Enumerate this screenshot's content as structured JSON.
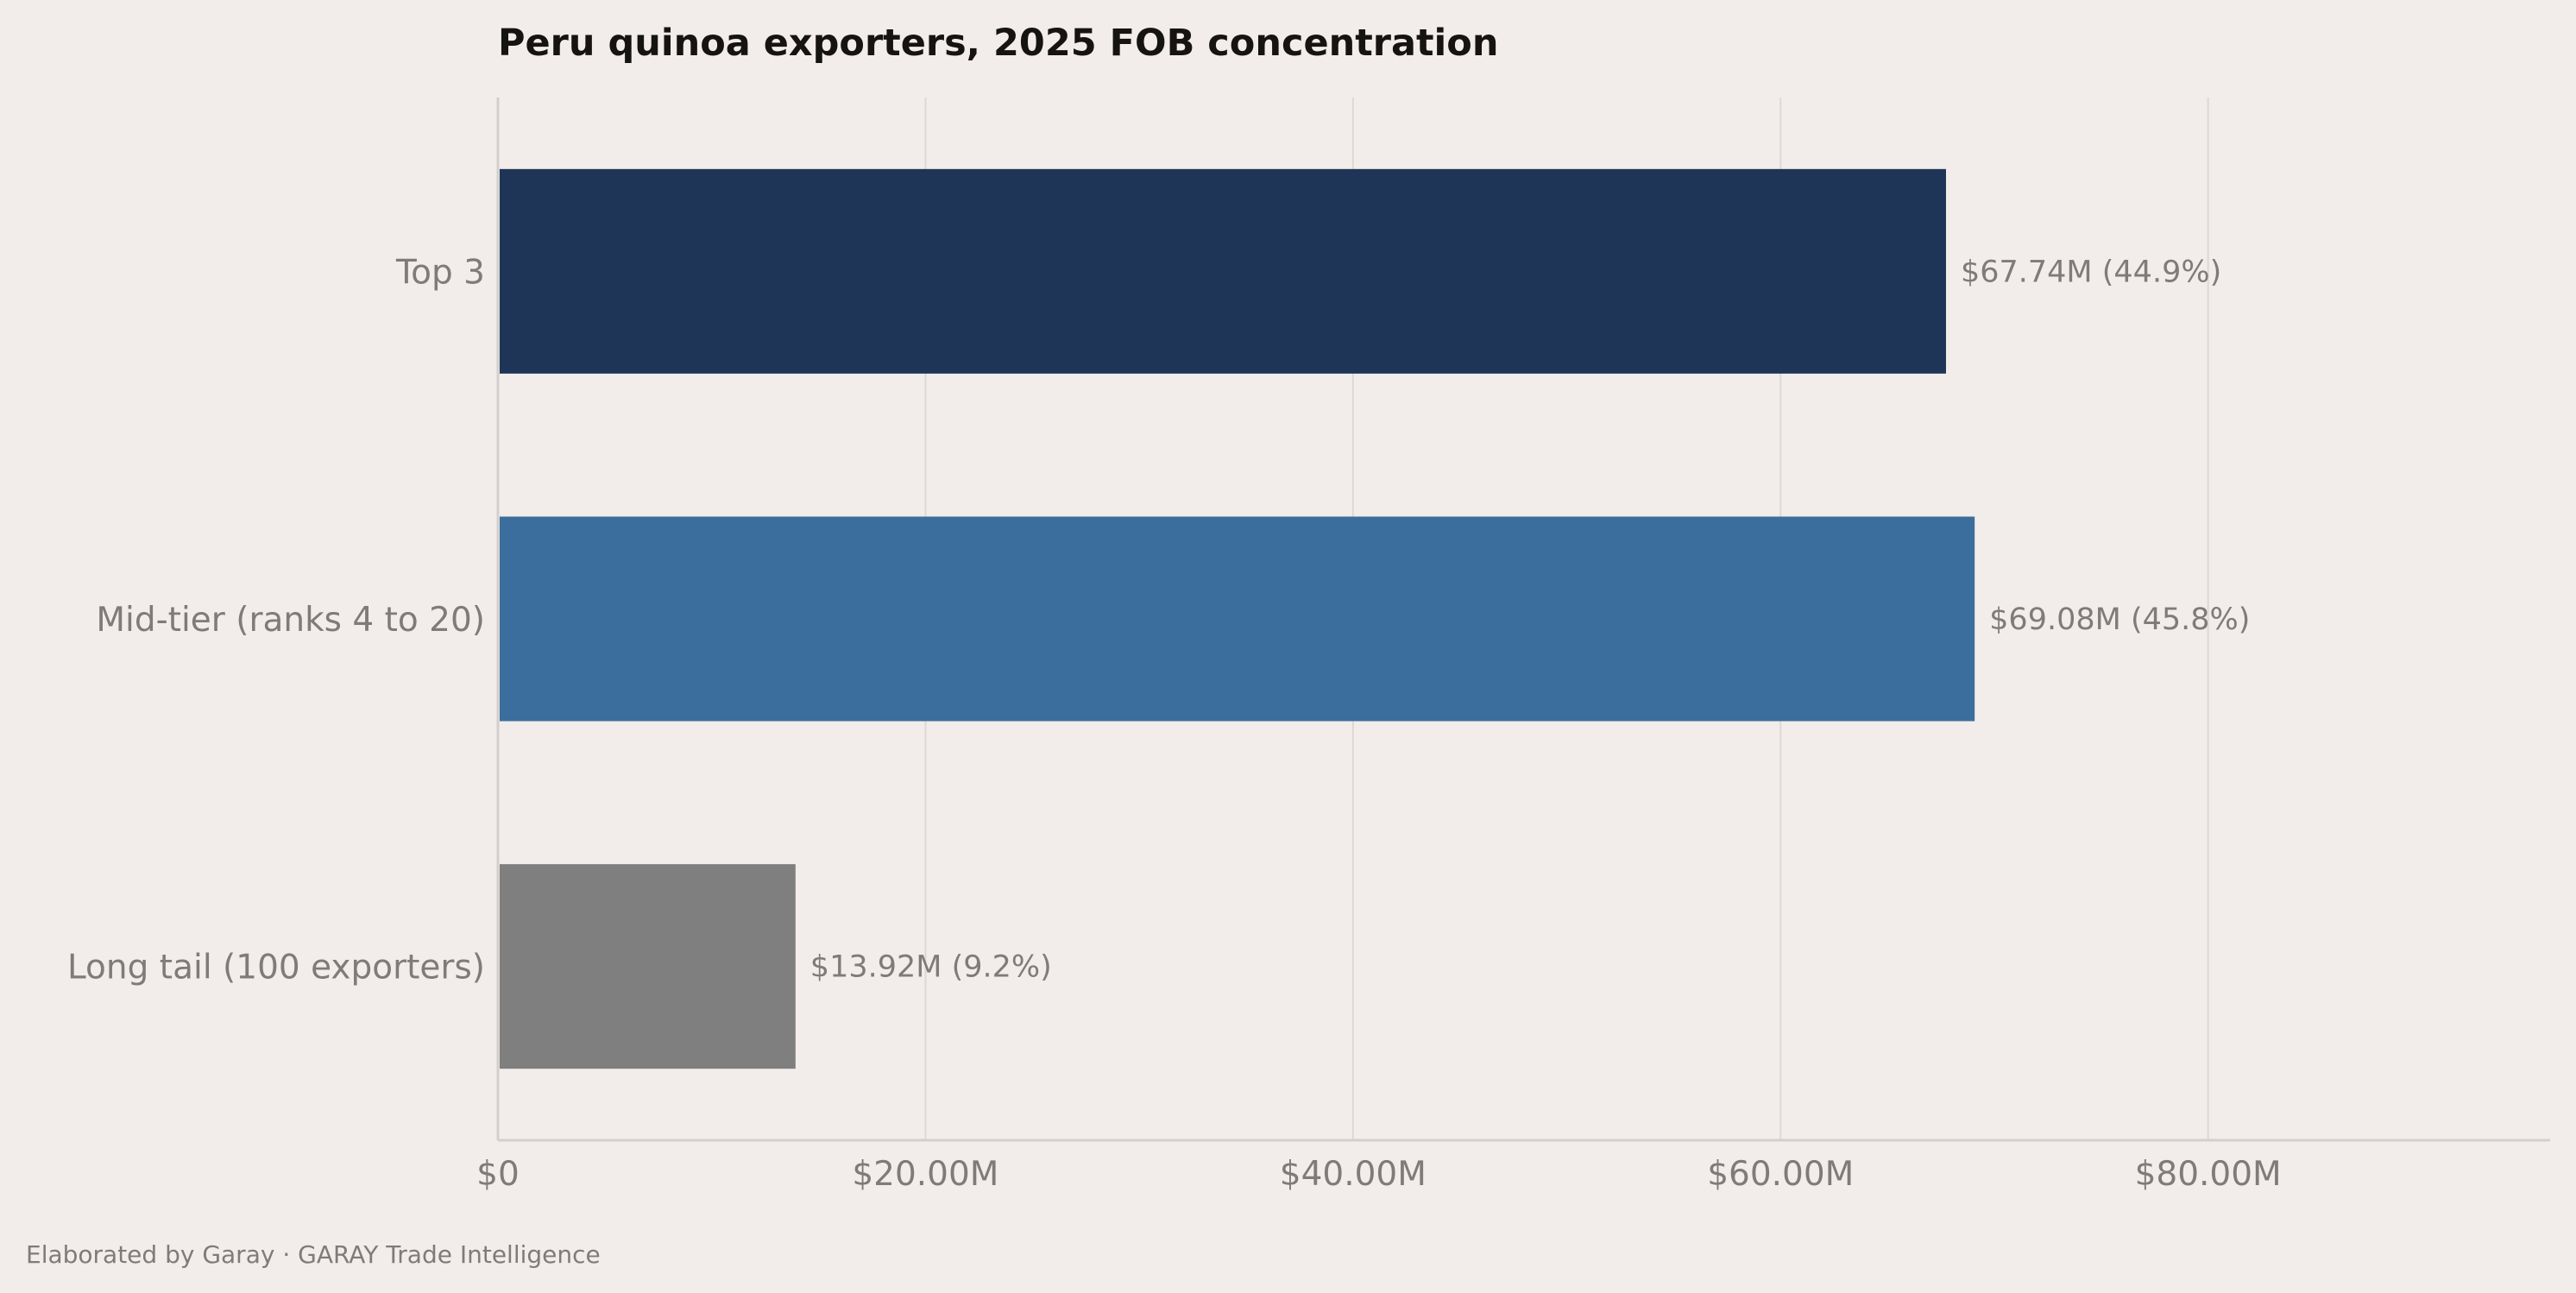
{
  "chart_data": {
    "type": "bar",
    "orientation": "horizontal",
    "title": "Peru quinoa exporters, 2025 FOB concentration",
    "xlabel": "",
    "ylabel": "",
    "xlim": [
      0,
      96
    ],
    "x_unit": "$M",
    "categories": [
      "Top 3",
      "Mid-tier (ranks 4 to 20)",
      "Long tail (100 exporters)"
    ],
    "values": [
      67.74,
      69.08,
      13.92
    ],
    "shares_percent": [
      44.9,
      45.8,
      9.2
    ],
    "data_labels": [
      "$67.74M  (44.9%)",
      "$69.08M  (45.8%)",
      "$13.92M  (9.2%)"
    ],
    "bar_colors": [
      "#1e3557",
      "#3b6e9c",
      "#7f7f7f"
    ],
    "x_ticks": [
      0,
      20,
      40,
      60,
      80
    ],
    "x_tick_labels": [
      "$0",
      "$20.00M",
      "$40.00M",
      "$60.00M",
      "$80.00M"
    ],
    "grid": "vertical",
    "legend": "none"
  },
  "footer": {
    "credit": "Elaborated by Garay  ·  GARAY Trade Intelligence"
  },
  "colors": {
    "background": "#f2edea",
    "grid": "#dcd8d5",
    "axis": "#d3cfcc",
    "text_muted": "#7e7b79",
    "title": "#161412"
  }
}
